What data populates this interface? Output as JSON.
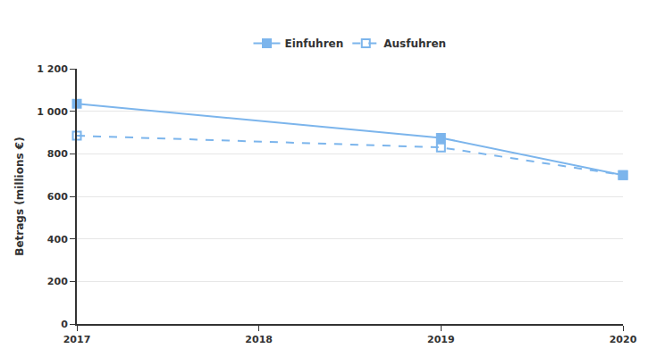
{
  "chart_data": {
    "type": "line",
    "y_label": "Betrags (millions €)",
    "x": [
      2017,
      2019,
      2020
    ],
    "series": [
      {
        "name": "Einfuhren",
        "color": "#7cb5ec",
        "marker": "square",
        "line_style": "solid",
        "values": [
          1035,
          875,
          700
        ]
      },
      {
        "name": "Ausfuhren",
        "color": "#7cb5ec",
        "marker": "square-open",
        "line_style": "dashed",
        "values": [
          885,
          830,
          700
        ]
      }
    ],
    "xlim": [
      2017,
      2020
    ],
    "xticks": [
      2017,
      2018,
      2019,
      2020
    ],
    "ylim": [
      0,
      1200
    ],
    "yticks": [
      0,
      200,
      400,
      600,
      800,
      {
        "value": 1000,
        "label": "1 000"
      },
      {
        "value": 1200,
        "label": "1 200"
      }
    ],
    "grid": true,
    "legend": "top"
  }
}
